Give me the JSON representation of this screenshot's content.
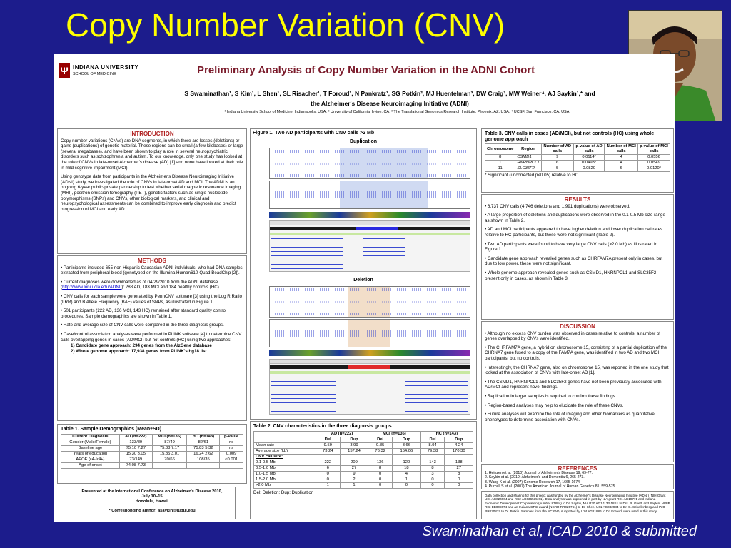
{
  "slide": {
    "title": "Copy Number Variation (CNV)",
    "citation": "Swaminathan et al,  ICAD 2010 & submitted"
  },
  "poster": {
    "logo": {
      "university": "INDIANA UNIVERSITY",
      "school": "SCHOOL OF MEDICINE"
    },
    "title": "Preliminary Analysis of Copy Number Variation in the ADNI Cohort",
    "authors_line1": "S Swaminathan¹, S Kim¹, L Shen¹, SL Risacher¹, T Foroud¹, N Pankratz¹, SG Potkin², MJ Huentelman³, DW Craig³, MW Weiner⁴, AJ Saykin¹,* and",
    "authors_line2": "the Alzheimer's Disease Neuroimaging Initiative (ADNI)",
    "affiliations": "¹ Indiana University School of Medicine, Indianapolis, USA; ² University of California, Irvine, CA; ³ The Translational Genomics Research Institute, Phoenix, AZ, USA; ⁴ UCSF, San Francisco, CA, USA",
    "introduction": {
      "heading": "INTRODUCTION",
      "p1": "Copy number variations (CNVs) are DNA segments, in which there are losses (deletions) or gains (duplications) of genetic material. These regions can be small (a few kilobases) or large (several megabases), and have been shown to play a role in several neuropsychiatric disorders such as schizophrenia and autism. To our knowledge, only one study has looked at the role of CNVs in late-onset Alzheimer's disease (AD) [1] and none have looked at their role in mild cognitive impairment (MCI).",
      "p2": "Using genotype data from participants in the Alzheimer's Disease Neuroimaging Initiative (ADNI) study, we investigated the role of CNVs in late-onset AD and MCI. The ADNI is an ongoing 6-year public-private partnership to test whether serial magnetic resonance imaging (MRI), positron emission tomography (PET), genetic factors such as single nucleotide polymorphisms (SNPs) and CNVs, other biological markers, and clinical and neuropsychological assessments can be combined to improve early diagnosis and predict progression of MCI and early AD."
    },
    "methods": {
      "heading": "METHODS",
      "items": [
        "Participants included 655 non-Hispanic Caucasian ADNI individuals, who had DNA samples extracted from peripheral blood (genotyped on the Illumina Human610-Quad BeadChip [2]).",
        "Current diagnoses were downloaded as of 04/29/2010 from the ADNI database (http://www.loni.ucla.edu/ADNI/): 288 AD, 183 MCI and 184 healthy controls (HC).",
        "CNV calls for each sample were generated by PennCNV software [3] using the Log R Ratio (LRR) and B Allele Frequency (BAF) values of SNPs, as illustrated in Figure 1.",
        "501 participants (222 AD, 136 MCI, 143 HC) remained after standard quality control procedures. Sample demographics are shown in Table 1.",
        "Rate and average size of CNV calls were compared in the three diagnosis groups.",
        "Case/control association analyses were performed in PLINK software [4] to determine CNV calls overlapping genes in cases (AD/MCI) but not controls (HC) using two approaches:"
      ],
      "sub1": "1) Candidate gene approach: 294 genes from the AlzGene database",
      "sub2": "2) Whole genome approach: 17,938 genes from PLINK's hg18 list"
    },
    "table1": {
      "heading": "Table 1. Sample Demographics (Mean±SD)",
      "headers": [
        "Current Diagnosis",
        "AD (n=222)",
        "MCI (n=136)",
        "HC (n=143)",
        "p-value"
      ],
      "rows": [
        [
          "Gender (Male/Female)",
          "133/89",
          "87/49",
          "82/61",
          "ns"
        ],
        [
          "Baseline age",
          "75.10  7.27",
          "75.88  7.17",
          "75.83  5.32",
          "ns"
        ],
        [
          "Years of education",
          "15.30  3.05",
          "15.85  3.01",
          "16.24  2.62",
          "0.009"
        ],
        [
          "APOE (ε4-/ε4+)",
          "73/149",
          "70/66",
          "108/35",
          "<0.001"
        ],
        [
          "Age of onset",
          "74.08  7.73",
          "-",
          "-",
          "-"
        ]
      ]
    },
    "presented": {
      "line1": "Presented at the International Conference on Alzheimer's Disease 2010,",
      "line2": "July 10–15",
      "line3": "Honolulu, Hawaii",
      "contact": "* Corresponding author: asaykin@iupui.edu"
    },
    "figure1": {
      "heading": "Figure 1. Two AD participants with CNV calls >2 Mb",
      "panel1": "Duplication",
      "panel2": "Deletion"
    },
    "table2": {
      "heading": "Table 2. CNV characteristics in the three diagnosis groups",
      "groups": [
        "AD (n=222)",
        "MCI (n=136)",
        "HC (n=143)"
      ],
      "sub": [
        "Del",
        "Dup",
        "Del",
        "Dup",
        "Del",
        "Dup"
      ],
      "rows": [
        [
          "Mean rate",
          "9.59",
          "3.99",
          "9.85",
          "3.66",
          "8.94",
          "4.24"
        ],
        [
          "Average size (kb)",
          "73.24",
          "157.24",
          "76.32",
          "154.06",
          "79.38",
          "170.30"
        ]
      ],
      "size_label": "CNV call size:",
      "size_rows": [
        [
          "0.1-0.5 Mb",
          "222",
          "209",
          "136",
          "120",
          "143",
          "138"
        ],
        [
          "0.5-1.0 Mb",
          "6",
          "27",
          "8",
          "18",
          "8",
          "27"
        ],
        [
          "1.0-1.5 Mb",
          "0",
          "9",
          "0",
          "4",
          "3",
          "8"
        ],
        [
          "1.5-2.0 Mb",
          "0",
          "2",
          "0",
          "1",
          "0",
          "0"
        ],
        [
          ">2.0 Mb",
          "1",
          "1",
          "0",
          "0",
          "0",
          "0"
        ]
      ],
      "note": "Del: Deletion; Dup: Duplication"
    },
    "table3": {
      "heading": "Table 3. CNV calls in cases (AD/MCI), but not controls (HC) using whole genome approach",
      "headers": [
        "Chromosome",
        "Region",
        "Number of AD calls",
        "p-value of AD calls",
        "Number of MCI calls",
        "p-value of MCI calls"
      ],
      "rows": [
        [
          "8",
          "CSMD1",
          "9",
          "0.0114*",
          "4",
          "0.0556"
        ],
        [
          "1",
          "HNRNPCL1",
          "6",
          "0.0493*",
          "4",
          "0.0549"
        ],
        [
          "11",
          "SLC35F2",
          "5",
          "0.0820",
          "6",
          "0.0120*"
        ]
      ],
      "note": "* Significant (uncorrected p<0.05) relative to HC"
    },
    "results": {
      "heading": "RESULTS",
      "items": [
        "6,737 CNV calls (4,746 deletions and 1,991 duplications) were observed.",
        "A large proportion of deletions and duplications were observed in the 0.1-0.5 Mb size range as shown in Table 2.",
        "AD and MCI participants appeared to have higher deletion and lower duplication call rates relative to HC participants, but these were not significant (Table 2).",
        "Two AD participants were found to have very large CNV calls (>2.0 Mb) as illustrated in Figure 1.",
        "Candidate gene approach revealed genes such as CHRFAM7A present only in cases, but due to low power, these were not significant.",
        "Whole genome approach revealed genes such as CSMD1, HNRNPCL1 and SLC35F2 present only in cases, as shown in Table 3."
      ]
    },
    "discussion": {
      "heading": "DISCUSSION",
      "items": [
        "Although no excess CNV burden was observed in cases relative to controls, a number of genes overlapped by CNVs were identified.",
        "The CHRFAM7A gene, a hybrid on chromosome 15, consisting of a partial duplication of the CHRNA7 gene fused to a copy of the FAM7A gene, was identified in two AD and two MCI participants, but no controls.",
        "Interestingly, the CHRNA7 gene, also on chromosome 15, was reported in the one study that looked at the association of CNVs with late-onset AD [1].",
        "The CSMD1, HNRNPCL1 and SLC35F2 genes have not been previously associated with AD/MCI and represent novel findings.",
        "Replication in larger samples is required to confirm these findings.",
        "Region-based analyses may help to elucidate the role of these CNVs.",
        "Future analyses will examine the role of imaging and other biomarkers as quantitative phenotypes to determine association with CNVs."
      ]
    },
    "references": {
      "heading": "REFERENCES",
      "items": [
        "1.  Heinzen et al. (2010) Journal of Alzheimer's Disease 19, 69-77.",
        "2.  Saykin et al. (2010) Alzheimer's and Dementia 6, 265-273.",
        "3.  Wang K et al. (2007) Genome Research 17, 1665-1674.",
        "4.  Purcell S et al. (2007) The American Journal of Human Genetics 81, 559-575."
      ]
    },
    "funding": "Data collection and sharing for this project was funded by the Alzheimer's Disease Neuroimaging Initiative (ADNI) (NIH Grant U01 AG024904 and RC2 AG036535-01). Data analysis was supported in part by NIA grant R01 AG19771 and Indiana Economic Development Corporation (number 87884) to Dr. Saykin, NIA P30 AG10133-18S1 to Drs. B. Ghetti and Saykin, NIBIB R03 EB008674 and an Indiana CTSI award (NCRR RR025761) to Dr. Shen, U01 AG032984 to Dr. G. Schellenberg and P20 RR020837 to Dr. Potkin. Samples from the NCRAD, supported by U24 AG21886 to Dr. Foroud, were used in this study."
  },
  "colors": {
    "background": "#1c1c8c",
    "title": "#ffff00",
    "poster_title": "#7a1a2a",
    "section_heading": "#b02020"
  }
}
